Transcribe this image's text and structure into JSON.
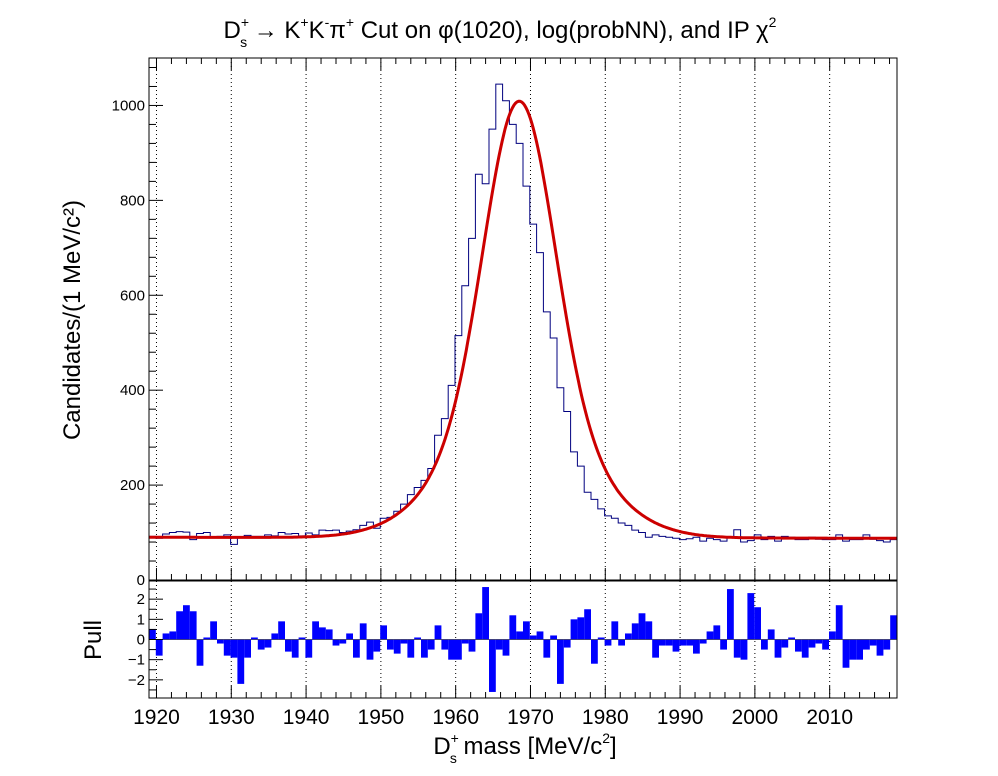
{
  "chart_data": [
    {
      "type": "bar",
      "panel": "main",
      "title_parts": {
        "D": "D",
        "sub": "s",
        "sup": "+",
        "rest1": " → K",
        "sup2": "+",
        "k2": "K",
        "sup3": "-",
        "pi": "π",
        "sup4": "+",
        "rest2": " Cut on φ(1020), log(probNN), and IP χ",
        "sup5": "2"
      },
      "ylabel": "Candidates/(1 MeV/c²)",
      "ylim": [
        0,
        1100
      ],
      "yticks": [
        "0",
        "200",
        "400",
        "600",
        "800",
        "1000"
      ],
      "xlim": [
        1919,
        2019
      ],
      "grid_x": [
        1920,
        1930,
        1940,
        1950,
        1960,
        1970,
        1980,
        1990,
        2000,
        2010
      ],
      "hist_color": "#00007f",
      "fit_color": "#cc0000",
      "fit_model": {
        "background": 90,
        "bkg_slope": -0.02,
        "peak": 1968.5,
        "amplitude": 920,
        "sigma": 4.6
      },
      "counts": [
        92,
        88,
        97,
        100,
        102,
        101,
        85,
        98,
        100,
        90,
        92,
        95,
        75,
        90,
        94,
        92,
        92,
        95,
        93,
        100,
        97,
        98,
        93,
        99,
        95,
        105,
        104,
        105,
        100,
        103,
        106,
        115,
        122,
        109,
        130,
        132,
        145,
        160,
        180,
        195,
        210,
        235,
        305,
        340,
        410,
        515,
        620,
        720,
        855,
        835,
        950,
        1045,
        1010,
        960,
        920,
        830,
        750,
        690,
        565,
        510,
        405,
        355,
        270,
        240,
        185,
        170,
        150,
        135,
        130,
        120,
        115,
        105,
        100,
        90,
        95,
        92,
        90,
        88,
        85,
        87,
        90,
        82,
        88,
        85,
        82,
        90,
        106,
        80,
        83,
        95,
        85,
        92,
        82,
        92,
        90,
        85,
        85,
        90,
        86,
        85,
        85,
        95,
        82,
        85,
        85,
        95,
        86,
        83,
        80,
        85
      ]
    },
    {
      "type": "bar",
      "panel": "pull",
      "ylabel": "Pull",
      "ylim": [
        -2.9,
        2.9
      ],
      "yticks": [
        "−2",
        "−1",
        "0",
        "1",
        "2"
      ],
      "xlabel_parts": {
        "D": "D",
        "sub": "s",
        "sup": "+",
        "rest": " mass [MeV/c",
        "sup2": "2",
        "end": "]"
      },
      "xticks": [
        "1920",
        "1930",
        "1940",
        "1950",
        "1960",
        "1970",
        "1980",
        "1990",
        "2000",
        "2010"
      ],
      "bar_color": "#0000ff",
      "pulls": [
        0.5,
        -0.8,
        0.3,
        0.4,
        1.4,
        1.7,
        1.4,
        -1.3,
        0.1,
        0.9,
        -0.2,
        -0.8,
        -0.9,
        -2.2,
        -0.9,
        0.1,
        -0.5,
        -0.4,
        0.3,
        0.9,
        -0.6,
        -0.9,
        0.1,
        -0.9,
        0.9,
        0.6,
        0.5,
        -0.3,
        -0.2,
        0.3,
        -0.9,
        0.8,
        -1.0,
        -0.6,
        0.7,
        -0.5,
        -0.7,
        -0.2,
        -0.9,
        0.1,
        -0.9,
        -0.5,
        0.7,
        -0.5,
        -1.0,
        -1.0,
        -0.2,
        -0.6,
        1.3,
        2.6,
        -2.6,
        -0.5,
        -0.8,
        1.2,
        0.4,
        0.9,
        0.2,
        0.4,
        -0.9,
        0.2,
        -2.2,
        -0.4,
        1.0,
        1.1,
        1.5,
        -1.2,
        0.1,
        -0.3,
        0.9,
        -0.3,
        0.3,
        0.8,
        1.3,
        0.9,
        -0.9,
        -0.3,
        -0.3,
        -0.6,
        -0.3,
        -0.3,
        -0.7,
        -0.2,
        0.4,
        0.7,
        -0.5,
        2.5,
        -0.9,
        -1.0,
        2.3,
        1.6,
        -0.5,
        0.5,
        -0.9,
        -0.4,
        0.1,
        -0.6,
        -0.9,
        -0.4,
        -0.2,
        -0.5,
        0.4,
        1.7,
        -1.4,
        -1.0,
        -1.0,
        -0.5,
        -0.3,
        -0.8,
        -0.5,
        1.2
      ]
    }
  ]
}
